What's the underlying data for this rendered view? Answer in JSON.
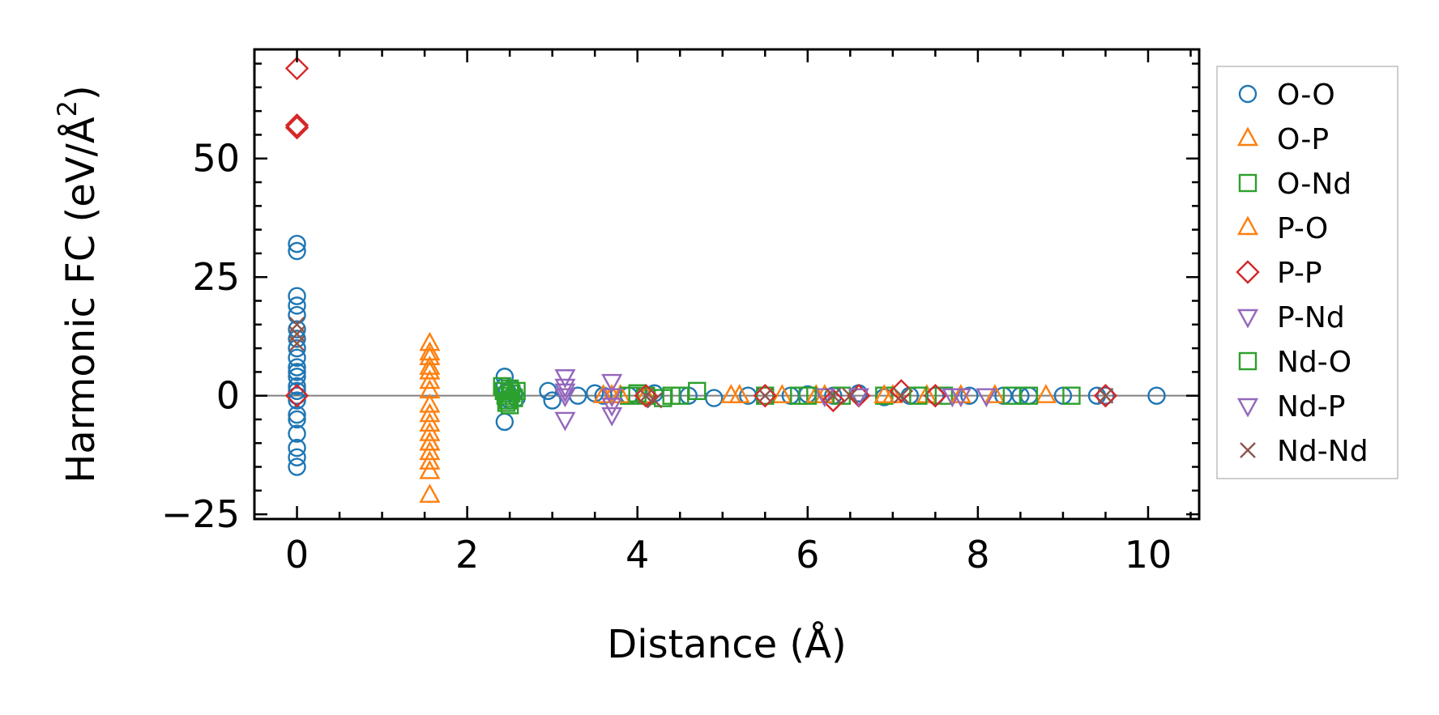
{
  "chart_data": {
    "type": "scatter",
    "title": "",
    "xlabel": "Distance (Å)",
    "ylabel_main": "Harmonic FC (eV/Å",
    "ylabel_sup": "2",
    "ylabel_close": ")",
    "xlim": [
      -0.5,
      10.6
    ],
    "ylim": [
      -26,
      73
    ],
    "x_ticks": [
      0,
      2,
      4,
      6,
      8,
      10
    ],
    "x_tick_labels": [
      "0",
      "2",
      "4",
      "6",
      "8",
      "10"
    ],
    "y_ticks": [
      -25,
      0,
      25,
      50
    ],
    "y_tick_labels": [
      "−25",
      "0",
      "25",
      "50"
    ],
    "zero_line": 0,
    "grid": false,
    "legend_position": "outside-right",
    "series": [
      {
        "name": "O-O",
        "marker": "circle",
        "color": "#1f77b4",
        "x": [
          0,
          0,
          0,
          0,
          0,
          0,
          0,
          0,
          0,
          0,
          0,
          0,
          0,
          0,
          0,
          0,
          0,
          0,
          0,
          0,
          0,
          0,
          2.44,
          2.44,
          2.44,
          2.47,
          2.5,
          2.52,
          2.55,
          2.58,
          2.95,
          3.0,
          3.3,
          3.5,
          3.6,
          3.9,
          4.2,
          4.6,
          4.9,
          5.3,
          5.8,
          6.0,
          6.3,
          6.6,
          6.9,
          7.2,
          7.5,
          7.9,
          8.3,
          8.5,
          8.6,
          9.0,
          9.4,
          9.5,
          10.1
        ],
        "y": [
          32,
          30.5,
          21,
          19,
          17,
          14,
          12,
          10,
          8,
          6,
          5,
          4,
          0,
          -4,
          -5,
          -8,
          -11,
          -13,
          -15,
          2,
          1,
          -1,
          4,
          -5.5,
          2,
          1,
          -1,
          1.5,
          0.5,
          -0.5,
          1,
          -1,
          0,
          0.5,
          0,
          0,
          0.5,
          0,
          -0.5,
          0,
          0,
          0.3,
          0,
          0.5,
          -0.3,
          0,
          0,
          0,
          0,
          0,
          0,
          0,
          0,
          0,
          0
        ]
      },
      {
        "name": "O-P",
        "marker": "triangle-up",
        "color": "#ff7f0e",
        "x": [
          1.56,
          1.56,
          1.56,
          1.56,
          1.56,
          1.56,
          1.56,
          1.56,
          1.56,
          1.56,
          1.56,
          1.56,
          1.56,
          1.56,
          3.6,
          3.8,
          4.1,
          5.1,
          5.7,
          6.2,
          7.0,
          7.4,
          8.2,
          8.8
        ],
        "y": [
          11,
          8,
          5,
          3,
          -2,
          -4,
          -6,
          -8,
          -10,
          -12,
          -14,
          -16,
          -21,
          6,
          0,
          0,
          0,
          0,
          0,
          0,
          0,
          0,
          0,
          0
        ]
      },
      {
        "name": "O-Nd",
        "marker": "square",
        "color": "#2ca02c",
        "x": [
          2.41,
          2.43,
          2.45,
          2.48,
          2.5,
          2.52,
          2.55,
          2.58,
          3.9,
          4.0,
          4.1,
          4.3,
          4.5,
          4.7,
          5.5,
          5.9,
          6.4,
          6.9,
          7.6,
          8.6,
          9.1
        ],
        "y": [
          2,
          1,
          0,
          -1,
          -2,
          0.5,
          -0.5,
          1,
          0,
          0.5,
          0,
          -0.5,
          0,
          1,
          0,
          0,
          0,
          0,
          0,
          0,
          0
        ]
      },
      {
        "name": "P-O",
        "marker": "triangle-up",
        "color": "#ff7f0e",
        "x": [
          1.56,
          1.56,
          1.56,
          3.7,
          5.2,
          6.1,
          6.9,
          7.8
        ],
        "y": [
          9,
          1,
          -10,
          0,
          0,
          0,
          0,
          0
        ]
      },
      {
        "name": "P-P",
        "marker": "diamond",
        "color": "#d62728",
        "x": [
          0,
          0,
          0,
          0,
          4.1,
          5.5,
          6.3,
          6.6,
          7.1,
          7.5,
          9.5
        ],
        "y": [
          69,
          57,
          56.5,
          0,
          0,
          0,
          -1,
          0,
          1,
          0,
          0
        ]
      },
      {
        "name": "P-Nd",
        "marker": "triangle-down",
        "color": "#9467bd",
        "x": [
          3.15,
          3.15,
          3.15,
          3.15,
          3.7,
          3.7,
          3.7,
          6.2,
          7.7,
          8.1
        ],
        "y": [
          4,
          2,
          0,
          -5,
          3,
          0,
          -4,
          0,
          0,
          0
        ]
      },
      {
        "name": "Nd-O",
        "marker": "square",
        "color": "#2ca02c",
        "x": [
          2.46,
          2.5,
          4.4,
          6.0,
          7.3,
          8.4
        ],
        "y": [
          -1.5,
          1.5,
          0,
          0,
          0,
          0
        ]
      },
      {
        "name": "Nd-P",
        "marker": "triangle-down",
        "color": "#9467bd",
        "x": [
          3.15,
          3.7,
          6.6,
          7.8
        ],
        "y": [
          1,
          -2,
          0,
          0
        ]
      },
      {
        "name": "Nd-Nd",
        "marker": "x",
        "color": "#8c564b",
        "x": [
          0,
          0,
          0,
          4.1,
          4.2,
          5.5,
          6.3,
          6.5,
          7.1,
          9.5
        ],
        "y": [
          15,
          13,
          11,
          0,
          -1,
          0,
          0,
          0,
          0,
          0
        ]
      }
    ]
  }
}
